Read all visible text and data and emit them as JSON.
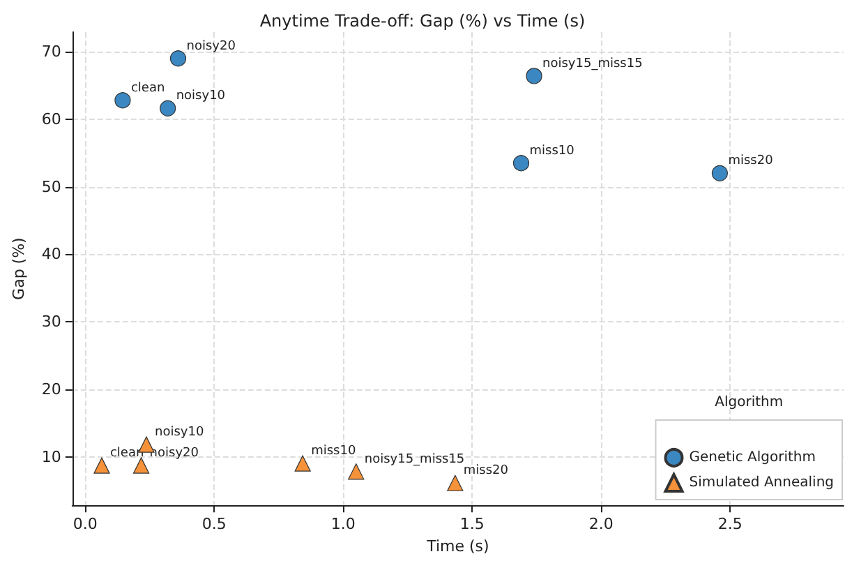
{
  "chart_data": {
    "type": "scatter",
    "title": "Anytime Trade-off: Gap (%) vs Time (s)",
    "xlabel": "Time (s)",
    "ylabel": "Gap (%)",
    "legend_title": "Algorithm",
    "series": [
      {
        "name": "Genetic Algorithm",
        "color": "#3a87c1",
        "marker": "circle",
        "x": [
          0.145,
          0.32,
          0.36,
          1.74,
          1.69,
          2.46
        ],
        "values": [
          62.8,
          61.6,
          69.0,
          66.4,
          53.5,
          52.0
        ]
      },
      {
        "name": "Simulated Annealing",
        "color": "#f5923a",
        "marker": "triangle",
        "x": [
          0.064,
          0.217,
          0.237,
          0.843,
          1.05,
          1.434
        ],
        "values": [
          8.7,
          8.7,
          11.8,
          9.0,
          7.8,
          6.1
        ]
      }
    ],
    "annotations": [
      {
        "text": "clean",
        "x": 0.145,
        "y": 62.8
      },
      {
        "text": "noisy10",
        "x": 0.32,
        "y": 61.6
      },
      {
        "text": "noisy20",
        "x": 0.36,
        "y": 69.0
      },
      {
        "text": "noisy15_miss15",
        "x": 1.74,
        "y": 66.4
      },
      {
        "text": "miss10",
        "x": 1.69,
        "y": 53.5
      },
      {
        "text": "miss20",
        "x": 2.46,
        "y": 52.0
      },
      {
        "text": "clean",
        "x": 0.064,
        "y": 8.7
      },
      {
        "text": "noisy20",
        "x": 0.217,
        "y": 8.7
      },
      {
        "text": "noisy10",
        "x": 0.237,
        "y": 11.8
      },
      {
        "text": "miss10",
        "x": 0.843,
        "y": 9.0
      },
      {
        "text": "noisy15_miss15",
        "x": 1.05,
        "y": 7.8
      },
      {
        "text": "miss20",
        "x": 1.434,
        "y": 6.1
      }
    ],
    "xlim": [
      -0.05,
      2.94
    ],
    "ylim": [
      2.8,
      72.9
    ],
    "xticks": [
      {
        "value": 0,
        "label": "0.0"
      },
      0.5,
      {
        "value": 1,
        "label": "1.0"
      },
      1.5,
      {
        "value": 2,
        "label": "2.0"
      },
      2.5
    ],
    "yticks": [
      10,
      20,
      30,
      40,
      50,
      60,
      70
    ],
    "grid": true,
    "legend": "bottom right"
  }
}
